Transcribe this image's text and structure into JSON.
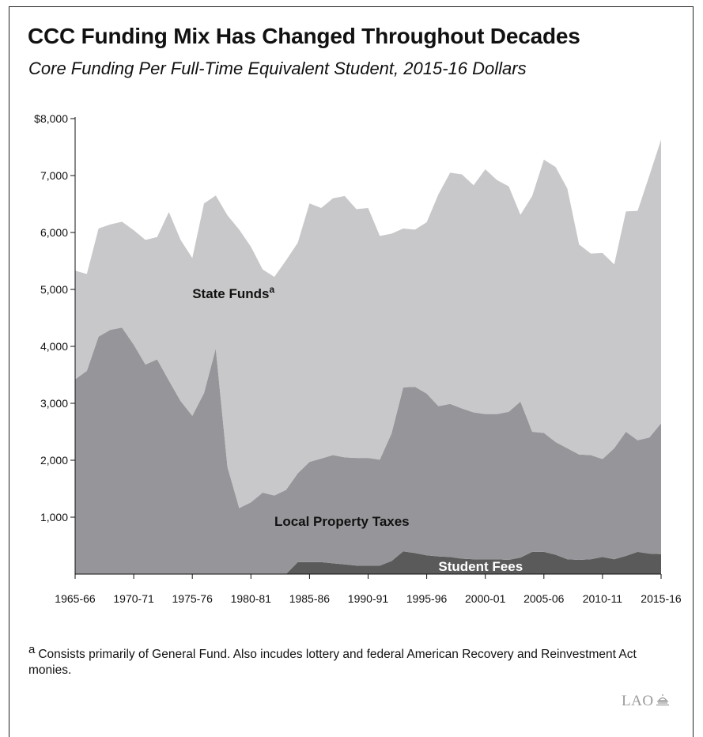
{
  "title": "CCC Funding Mix Has Changed Throughout Decades",
  "subtitle": "Core Funding Per Full-Time Equivalent Student, 2015-16 Dollars",
  "footnote": {
    "marker": "a",
    "text": "Consists primarily of General Fund. Also incudes lottery and federal American Recovery and Reinvestment Act monies."
  },
  "logo": "LAO",
  "chart_data": {
    "type": "area",
    "stacked": true,
    "x": [
      "1965-66",
      "1966-67",
      "1967-68",
      "1968-69",
      "1969-70",
      "1970-71",
      "1971-72",
      "1972-73",
      "1973-74",
      "1974-75",
      "1975-76",
      "1976-77",
      "1977-78",
      "1978-79",
      "1979-80",
      "1980-81",
      "1981-82",
      "1982-83",
      "1983-84",
      "1984-85",
      "1985-86",
      "1986-87",
      "1987-88",
      "1988-89",
      "1989-90",
      "1990-91",
      "1991-92",
      "1992-93",
      "1993-94",
      "1994-95",
      "1995-96",
      "1996-97",
      "1997-98",
      "1998-99",
      "1999-00",
      "2000-01",
      "2001-02",
      "2002-03",
      "2003-04",
      "2004-05",
      "2005-06",
      "2006-07",
      "2007-08",
      "2008-09",
      "2009-10",
      "2010-11",
      "2011-12",
      "2012-13",
      "2013-14",
      "2014-15",
      "2015-16"
    ],
    "x_tick_labels": [
      "1965-66",
      "1970-71",
      "1975-76",
      "1980-81",
      "1985-86",
      "1990-91",
      "1995-96",
      "2000-01",
      "2005-06",
      "2010-11",
      "2015-16"
    ],
    "series": [
      {
        "name": "Student Fees",
        "values": [
          0,
          0,
          0,
          0,
          0,
          0,
          0,
          0,
          0,
          0,
          0,
          0,
          0,
          0,
          0,
          0,
          0,
          0,
          0,
          210,
          210,
          210,
          190,
          170,
          150,
          150,
          150,
          230,
          400,
          370,
          330,
          310,
          300,
          270,
          260,
          260,
          260,
          250,
          290,
          390,
          390,
          340,
          260,
          250,
          260,
          300,
          260,
          320,
          390,
          360,
          350
        ],
        "color": "#5a5a5a"
      },
      {
        "name": "Local Property Taxes",
        "values": [
          3420,
          3570,
          4170,
          4290,
          4330,
          4030,
          3680,
          3770,
          3400,
          3040,
          2780,
          3180,
          3960,
          1880,
          1160,
          1260,
          1430,
          1380,
          1480,
          1560,
          1760,
          1820,
          1900,
          1880,
          1890,
          1890,
          1860,
          2240,
          2880,
          2920,
          2840,
          2640,
          2690,
          2640,
          2580,
          2550,
          2550,
          2600,
          2740,
          2110,
          2090,
          1980,
          1950,
          1850,
          1830,
          1720,
          1950,
          2180,
          1960,
          2040,
          2300
        ],
        "color": "#96969a"
      },
      {
        "name": "State Funds",
        "name_superscript": "a",
        "values": [
          1910,
          1700,
          1900,
          1850,
          1860,
          2010,
          2190,
          2150,
          2960,
          2830,
          2770,
          3330,
          2690,
          4420,
          4890,
          4490,
          3920,
          3840,
          4030,
          4050,
          4540,
          4400,
          4510,
          4590,
          4370,
          4390,
          3930,
          3510,
          2790,
          2760,
          3010,
          3720,
          4060,
          4110,
          3990,
          4300,
          4110,
          3960,
          3280,
          4140,
          4800,
          4830,
          4560,
          3690,
          3540,
          3620,
          3230,
          3870,
          4030,
          4600,
          4980
        ],
        "color": "#c8c8ca"
      }
    ],
    "y_ticks": [
      1000,
      2000,
      3000,
      4000,
      5000,
      6000,
      7000,
      8000
    ],
    "y_tick_labels": [
      "1,000",
      "2,000",
      "3,000",
      "4,000",
      "5,000",
      "6,000",
      "7,000",
      "$8,000"
    ],
    "ylim": [
      0,
      8000
    ],
    "grid": false,
    "legend": "none",
    "annotations": [
      {
        "text": "State Funds",
        "superscript": "a",
        "x": "1975-76",
        "y": 4850
      },
      {
        "text": "Local Property Taxes",
        "x": "1982-83",
        "y": 850
      },
      {
        "text": "Student Fees",
        "x": "1996-97",
        "y": 55
      }
    ]
  }
}
